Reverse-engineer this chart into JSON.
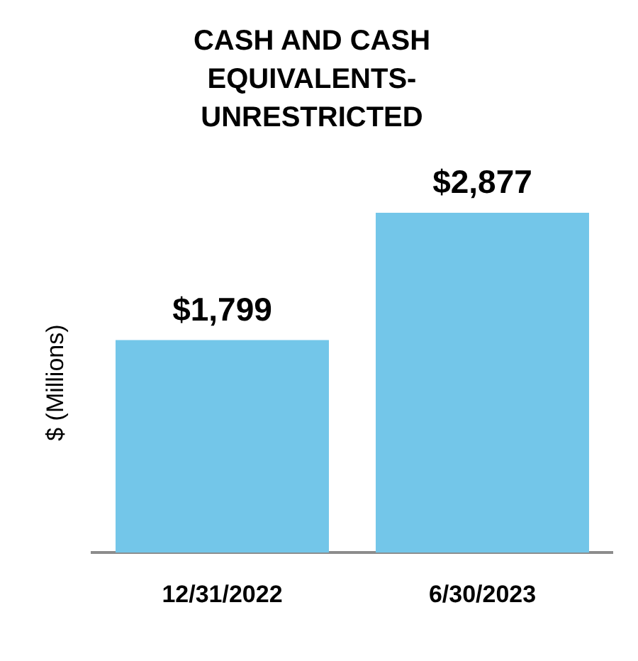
{
  "chart_data": {
    "type": "bar",
    "title": "CASH AND CASH EQUIVALENTS-UNRESTRICTED",
    "ylabel": "$ (Millions)",
    "categories": [
      "12/31/2022",
      "6/30/2023"
    ],
    "values": [
      1799,
      2877
    ],
    "value_labels": [
      "$1,799",
      "$2,877"
    ],
    "color": "#73c6e9",
    "legend": false,
    "grid": false
  }
}
